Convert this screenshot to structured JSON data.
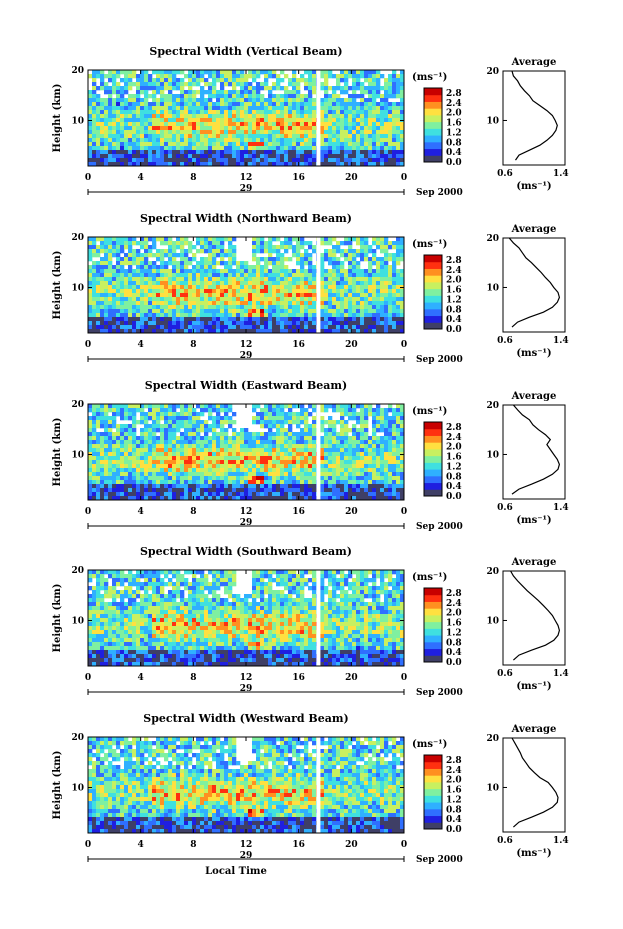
{
  "chart_data": [
    {
      "type": "heatmap",
      "title": "Spectral Width (Vertical Beam)",
      "ylabel": "Height (km)",
      "x_ticks": [
        "0",
        "4",
        "8",
        "12",
        "16",
        "20",
        "0"
      ],
      "y_ticks": [
        "20",
        "10"
      ],
      "xlim": [
        0,
        24
      ],
      "ylim": [
        1,
        20
      ],
      "date_label": "29",
      "month_year": "Sep 2000",
      "colorbar_unit": "(ms⁻¹)",
      "colorbar_ticks": [
        "2.8",
        "2.4",
        "2.0",
        "1.6",
        "1.2",
        "0.8",
        "0.4",
        "0.0"
      ],
      "avg_title": "Average",
      "avg_xlabel": "(ms⁻¹)",
      "avg_x_ticks": [
        "0.6",
        "1.4"
      ],
      "avg_y_ticks": [
        "20",
        "10"
      ],
      "avg_xlim": [
        0.6,
        1.4
      ],
      "avg_profile": {
        "height": [
          2,
          3,
          4,
          5,
          6,
          7,
          8,
          9,
          10,
          11,
          12,
          13,
          14,
          15,
          16,
          17,
          18,
          19,
          20
        ],
        "width": [
          0.75,
          0.8,
          0.95,
          1.1,
          1.2,
          1.28,
          1.33,
          1.35,
          1.32,
          1.28,
          1.2,
          1.1,
          1.0,
          0.95,
          0.88,
          0.82,
          0.78,
          0.72,
          0.7
        ]
      }
    },
    {
      "type": "heatmap",
      "title": "Spectral Width (Northward Beam)",
      "ylabel": "Height (km)",
      "x_ticks": [
        "0",
        "4",
        "8",
        "12",
        "16",
        "20",
        "0"
      ],
      "y_ticks": [
        "20",
        "10"
      ],
      "xlim": [
        0,
        24
      ],
      "ylim": [
        1,
        20
      ],
      "date_label": "29",
      "month_year": "Sep 2000",
      "colorbar_unit": "(ms⁻¹)",
      "colorbar_ticks": [
        "2.8",
        "2.4",
        "2.0",
        "1.6",
        "1.2",
        "0.8",
        "0.4",
        "0.0"
      ],
      "avg_title": "Average",
      "avg_xlabel": "(ms⁻¹)",
      "avg_x_ticks": [
        "0.6",
        "1.4"
      ],
      "avg_y_ticks": [
        "20",
        "10"
      ],
      "avg_xlim": [
        0.6,
        1.4
      ],
      "avg_profile": {
        "height": [
          2,
          3,
          4,
          5,
          6,
          7,
          8,
          9,
          10,
          11,
          12,
          13,
          14,
          15,
          16,
          17,
          18,
          19,
          20
        ],
        "width": [
          0.7,
          0.78,
          0.95,
          1.15,
          1.28,
          1.35,
          1.38,
          1.36,
          1.3,
          1.25,
          1.18,
          1.12,
          1.05,
          0.98,
          0.9,
          0.85,
          0.8,
          0.72,
          0.66
        ]
      }
    },
    {
      "type": "heatmap",
      "title": "Spectral Width (Eastward Beam)",
      "ylabel": "Height (km)",
      "x_ticks": [
        "0",
        "4",
        "8",
        "12",
        "16",
        "20",
        "0"
      ],
      "y_ticks": [
        "20",
        "10"
      ],
      "xlim": [
        0,
        24
      ],
      "ylim": [
        1,
        20
      ],
      "date_label": "29",
      "month_year": "Sep 2000",
      "colorbar_unit": "(ms⁻¹)",
      "colorbar_ticks": [
        "2.8",
        "2.4",
        "2.0",
        "1.6",
        "1.2",
        "0.8",
        "0.4",
        "0.0"
      ],
      "avg_title": "Average",
      "avg_xlabel": "(ms⁻¹)",
      "avg_x_ticks": [
        "0.6",
        "1.4"
      ],
      "avg_y_ticks": [
        "20",
        "10"
      ],
      "avg_xlim": [
        0.6,
        1.4
      ],
      "avg_profile": {
        "height": [
          2,
          3,
          4,
          5,
          6,
          7,
          8,
          9,
          10,
          11,
          12,
          13,
          14,
          15,
          16,
          17,
          18,
          19,
          20
        ],
        "width": [
          0.7,
          0.8,
          0.98,
          1.15,
          1.28,
          1.36,
          1.38,
          1.35,
          1.3,
          1.25,
          1.2,
          1.25,
          1.18,
          1.08,
          1.0,
          0.95,
          0.85,
          0.78,
          0.72
        ]
      }
    },
    {
      "type": "heatmap",
      "title": "Spectral Width (Southward Beam)",
      "ylabel": "Height (km)",
      "x_ticks": [
        "0",
        "4",
        "8",
        "12",
        "16",
        "20",
        "0"
      ],
      "y_ticks": [
        "20",
        "10"
      ],
      "xlim": [
        0,
        24
      ],
      "ylim": [
        1,
        20
      ],
      "date_label": "29",
      "month_year": "Sep 2000",
      "colorbar_unit": "(ms⁻¹)",
      "colorbar_ticks": [
        "2.8",
        "2.4",
        "2.0",
        "1.6",
        "1.2",
        "0.8",
        "0.4",
        "0.0"
      ],
      "avg_title": "Average",
      "avg_xlabel": "(ms⁻¹)",
      "avg_x_ticks": [
        "0.6",
        "1.4"
      ],
      "avg_y_ticks": [
        "20",
        "10"
      ],
      "avg_xlim": [
        0.6,
        1.4
      ],
      "avg_profile": {
        "height": [
          2,
          3,
          4,
          5,
          6,
          7,
          8,
          9,
          10,
          11,
          12,
          13,
          14,
          15,
          16,
          17,
          18,
          19,
          20
        ],
        "width": [
          0.72,
          0.8,
          0.98,
          1.18,
          1.3,
          1.36,
          1.38,
          1.36,
          1.32,
          1.28,
          1.22,
          1.15,
          1.08,
          1.0,
          0.92,
          0.85,
          0.78,
          0.72,
          0.68
        ]
      }
    },
    {
      "type": "heatmap",
      "title": "Spectral Width (Westward Beam)",
      "ylabel": "Height (km)",
      "x_ticks": [
        "0",
        "4",
        "8",
        "12",
        "16",
        "20",
        "0"
      ],
      "y_ticks": [
        "20",
        "10"
      ],
      "xlim": [
        0,
        24
      ],
      "ylim": [
        1,
        20
      ],
      "date_label": "29",
      "month_year": "Sep 2000",
      "xlabel": "Local Time",
      "colorbar_unit": "(ms⁻¹)",
      "colorbar_ticks": [
        "2.8",
        "2.4",
        "2.0",
        "1.6",
        "1.2",
        "0.8",
        "0.4",
        "0.0"
      ],
      "avg_title": "Average",
      "avg_xlabel": "(ms⁻¹)",
      "avg_x_ticks": [
        "0.6",
        "1.4"
      ],
      "avg_y_ticks": [
        "20",
        "10"
      ],
      "avg_xlim": [
        0.6,
        1.4
      ],
      "avg_profile": {
        "height": [
          2,
          3,
          4,
          5,
          6,
          7,
          8,
          9,
          10,
          11,
          12,
          13,
          14,
          15,
          16,
          17,
          18,
          19,
          20
        ],
        "width": [
          0.72,
          0.8,
          0.98,
          1.15,
          1.28,
          1.35,
          1.36,
          1.33,
          1.28,
          1.22,
          1.1,
          1.02,
          0.95,
          0.9,
          0.85,
          0.82,
          0.78,
          0.74,
          0.7
        ]
      }
    }
  ],
  "colors": {
    "colormap": [
      "#3f3f66",
      "#1f1fe0",
      "#2f6fff",
      "#2fb0ff",
      "#3fe0e0",
      "#7ff0a0",
      "#c8f060",
      "#ffe040",
      "#ff9020",
      "#ff3010",
      "#c80000"
    ]
  }
}
